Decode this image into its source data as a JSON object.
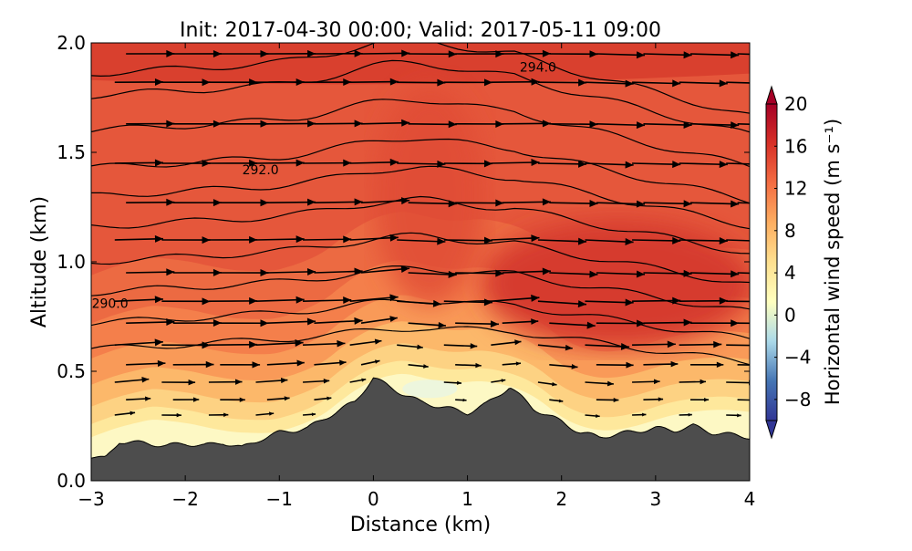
{
  "chart_data": {
    "type": "contour",
    "title": "Init: 2017-04-30 00:00; Valid: 2017-05-11 09:00",
    "xlabel": "Distance (km)",
    "ylabel": "Altitude (km)",
    "xlim": [
      -3,
      4
    ],
    "ylim": [
      0,
      2
    ],
    "xticks": [
      "−3",
      "−2",
      "−1",
      "0",
      "1",
      "2",
      "3",
      "4"
    ],
    "xtick_values": [
      -3,
      -2,
      -1,
      0,
      1,
      2,
      3,
      4
    ],
    "yticks": [
      "0.0",
      "0.5",
      "1.0",
      "1.5",
      "2.0"
    ],
    "ytick_values": [
      0,
      0.5,
      1,
      1.5,
      2
    ],
    "colorbar": {
      "label": "Horizontal wind speed (m s⁻¹)",
      "range": [
        -10,
        20
      ],
      "extend": "both",
      "ticks": [
        "20",
        "16",
        "12",
        "8",
        "4",
        "0",
        "−4",
        "−8"
      ],
      "tick_values": [
        20,
        16,
        12,
        8,
        4,
        0,
        -4,
        -8
      ],
      "colors": [
        "#313695",
        "#4575b4",
        "#abd9e9",
        "#ffffbf",
        "#fee090",
        "#fdae61",
        "#f46d43",
        "#d73027",
        "#a50026"
      ]
    },
    "terrain": {
      "distance_km": [
        -3,
        -2.85,
        -2.7,
        -2.4,
        -2.2,
        -2,
        -1.8,
        -1.6,
        -1.4,
        -1.2,
        -1,
        -0.7,
        -0.5,
        -0.2,
        0,
        0.3,
        0.5,
        0.8,
        1.0,
        1.2,
        1.45,
        1.7,
        2.0,
        2.2,
        2.4,
        2.7,
        3.0,
        3.2,
        3.4,
        3.6,
        4.0
      ],
      "altitude_km": [
        0.11,
        0.1,
        0.18,
        0.17,
        0.16,
        0.17,
        0.16,
        0.175,
        0.15,
        0.19,
        0.22,
        0.24,
        0.29,
        0.36,
        0.47,
        0.4,
        0.36,
        0.33,
        0.31,
        0.35,
        0.43,
        0.33,
        0.27,
        0.22,
        0.2,
        0.22,
        0.24,
        0.23,
        0.25,
        0.22,
        0.2
      ]
    },
    "contour_labels": [
      {
        "text": "294.0",
        "x": 1.75,
        "z": 1.89
      },
      {
        "text": "292.0",
        "x": -1.2,
        "z": 1.42
      },
      {
        "text": "290.0",
        "x": -2.8,
        "z": 0.81
      }
    ],
    "quiver": {
      "x_km": [
        -2.75,
        -2.25,
        -1.75,
        -1.25,
        -0.75,
        -0.25,
        0.25,
        0.75,
        1.25,
        1.75,
        2.25,
        2.75,
        3.25,
        3.75
      ],
      "z_km": [
        0.3,
        0.37,
        0.45,
        0.53,
        0.62,
        0.72,
        0.82,
        0.95,
        1.1,
        1.27,
        1.45,
        1.63,
        1.82,
        1.95
      ]
    }
  }
}
